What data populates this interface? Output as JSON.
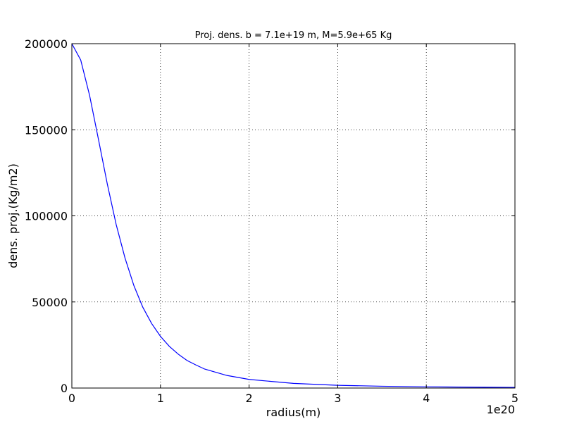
{
  "chart_data": {
    "type": "line",
    "title": "Proj. dens. b = 7.1e+19 m, M=5.9e+65 Kg",
    "xlabel": "radius(m)",
    "ylabel": "dens. proj.(Kg/m2)",
    "x_offset_label": "1e20",
    "xlim": [
      0,
      5
    ],
    "ylim": [
      0,
      200000
    ],
    "x_ticks": [
      0,
      1,
      2,
      3,
      4,
      5
    ],
    "x_tick_labels": [
      "0",
      "1",
      "2",
      "3",
      "4",
      "5"
    ],
    "y_ticks": [
      0,
      50000,
      100000,
      150000,
      200000
    ],
    "y_tick_labels": [
      "0",
      "50000",
      "100000",
      "150000",
      "200000"
    ],
    "grid": true,
    "series": [
      {
        "color": "#0000ff",
        "x": [
          0,
          0.1,
          0.2,
          0.3,
          0.4,
          0.5,
          0.6,
          0.7,
          0.8,
          0.9,
          1.0,
          1.1,
          1.2,
          1.3,
          1.4,
          1.5,
          1.75,
          2.0,
          2.5,
          3.0,
          3.5,
          4.0,
          4.5,
          5.0
        ],
        "y": [
          200000,
          190500,
          170000,
          144500,
          118500,
          95000,
          75500,
          59500,
          47000,
          37500,
          30000,
          24200,
          19700,
          16000,
          13400,
          11000,
          7300,
          5000,
          2700,
          1600,
          1050,
          700,
          500,
          370
        ]
      }
    ]
  }
}
